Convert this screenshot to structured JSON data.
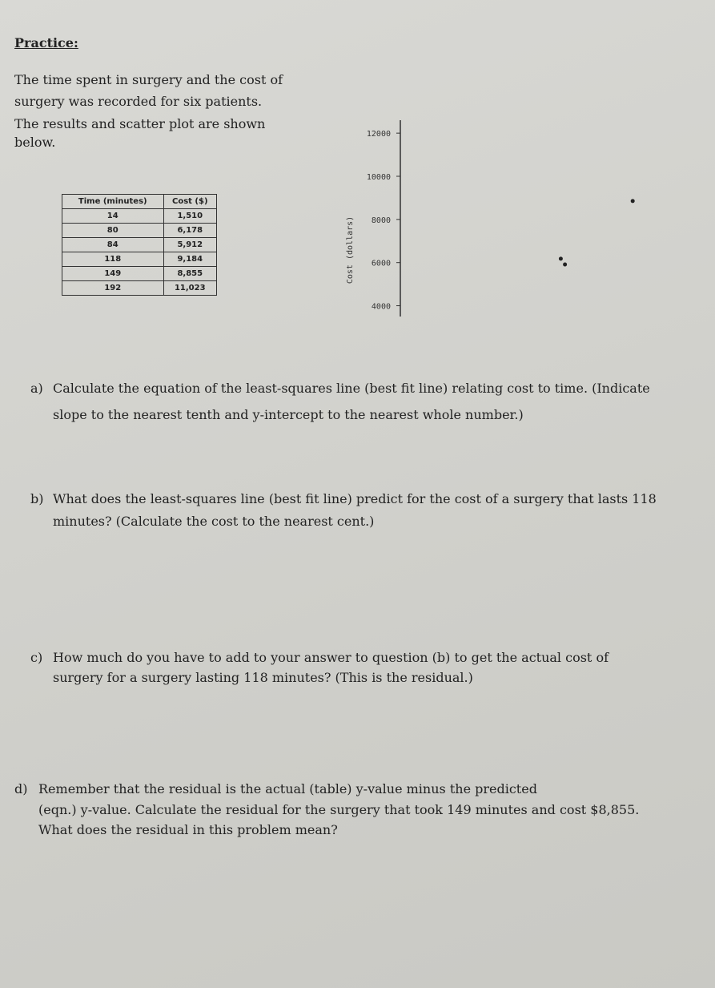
{
  "header": {
    "title": "Practice:"
  },
  "intro": [
    "The time spent in surgery and the cost of",
    "surgery was recorded for six patients.",
    "The results and scatter plot are shown",
    "below."
  ],
  "table": {
    "headers": [
      "Time (minutes)",
      "Cost ($)"
    ],
    "rows": [
      [
        "14",
        "1,510"
      ],
      [
        "80",
        "6,178"
      ],
      [
        "84",
        "5,912"
      ],
      [
        "118",
        "9,184"
      ],
      [
        "149",
        "8,855"
      ],
      [
        "192",
        "11,023"
      ]
    ]
  },
  "plot": {
    "type": "scatter",
    "y_label": "Cost (dollars)",
    "ylim": [
      3500,
      12600
    ],
    "yticks": [
      4000,
      6000,
      8000,
      10000,
      12000
    ],
    "xlim": [
      -74,
      228
    ],
    "x": [
      80,
      84,
      149
    ],
    "y": [
      6178,
      5912,
      8855
    ]
  },
  "questions": [
    {
      "label": "a)",
      "lines": [
        "Calculate the equation of the least-squares line (best fit line) relating cost to time. (Indicate",
        "slope to the nearest tenth and y-intercept to the nearest whole number.)"
      ]
    },
    {
      "label": "b)",
      "lines": [
        "What does the least-squares line (best fit line) predict for the cost of a surgery that lasts 118",
        "minutes? (Calculate the cost to the nearest cent.)"
      ]
    },
    {
      "label": "c)",
      "lines": [
        "How much do you have to add to your answer to question (b) to get the actual cost of",
        "surgery for a surgery lasting 118 minutes? (This is the residual.)"
      ]
    },
    {
      "label": "d)",
      "lines": [
        "Remember that the residual is the actual (table) y-value minus the predicted",
        "(eqn.) y-value. Calculate the residual for the surgery that took 149 minutes and cost $8,855.",
        "What does the residual in this problem mean?"
      ]
    }
  ]
}
